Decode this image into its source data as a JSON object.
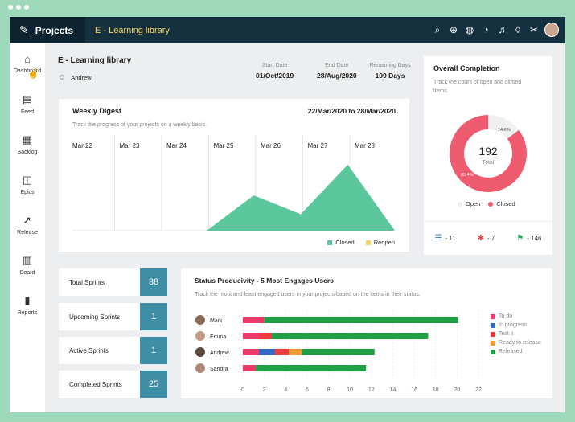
{
  "app": {
    "name": "Projects",
    "project": "E - Learning library"
  },
  "top_icons": [
    "search-icon",
    "plus-circle-icon",
    "globe-icon",
    "alarm-icon",
    "bell-icon",
    "drop-icon",
    "tools-icon"
  ],
  "sidebar": {
    "items": [
      {
        "label": "Dashboard",
        "icon": "⌂"
      },
      {
        "label": "Feed",
        "icon": "▤"
      },
      {
        "label": "Backlog",
        "icon": "▦"
      },
      {
        "label": "Epics",
        "icon": "◫"
      },
      {
        "label": "Release",
        "icon": "➚"
      },
      {
        "label": "Board",
        "icon": "▥"
      },
      {
        "label": "Reports",
        "icon": "▮"
      }
    ]
  },
  "header": {
    "title": "E - Learning library",
    "owner": "Andrew",
    "start_label": "Start Date",
    "start_value": "01/Oct/2019",
    "end_label": "End Date",
    "end_value": "28/Aug/2020",
    "remaining_label": "Remaining Days",
    "remaining_value": "109 Days"
  },
  "weekly": {
    "title": "Weekly Digest",
    "range": "22/Mar/2020 to 28/Mar/2020",
    "subtitle": "Track the progress of your projects on a weekly basis.",
    "legend_closed": "Closed",
    "legend_reopen": "Reopen"
  },
  "completion": {
    "title": "Overall Completion",
    "subtitle": "Track the count of open and closed items.",
    "total": "192",
    "total_label": "Total",
    "open_label": "Open",
    "closed_label": "Closed",
    "closed_pct_label": "85.4%",
    "open_pct_label": "14.6%",
    "stat1": "- 11",
    "stat2": "- 7",
    "stat3": "- 146"
  },
  "sprints": [
    {
      "label": "Total Sprints",
      "value": "38"
    },
    {
      "label": "Upcoming Sprints",
      "value": "1"
    },
    {
      "label": "Active Sprints",
      "value": "1"
    },
    {
      "label": "Completed Sprints",
      "value": "25"
    }
  ],
  "status": {
    "title": "Status Producivity - 5 Most Engages Users",
    "subtitle": "Track the most and least engaged users in your projects based on the items in their status.",
    "legend": [
      {
        "label": "To do",
        "color": "#ee3a6a"
      },
      {
        "label": "In progress",
        "color": "#3368c6"
      },
      {
        "label": "Test it",
        "color": "#ef3b3b"
      },
      {
        "label": "Ready to release",
        "color": "#f59a32"
      },
      {
        "label": "Released",
        "color": "#1fa045"
      }
    ]
  },
  "colors": {
    "accent": "#3e8ea6",
    "topbar": "#15303f",
    "closed": "#5cc79c",
    "reopen": "#f4d45a",
    "donut_closed": "#ee5a6e",
    "donut_open": "#f0f0f0"
  },
  "chart_data": [
    {
      "type": "area",
      "categories": [
        "Mar 22",
        "Mar 23",
        "Mar 24",
        "Mar 25",
        "Mar 26",
        "Mar 27",
        "Mar 28"
      ],
      "series": [
        {
          "name": "Closed",
          "values": [
            0,
            0,
            0,
            1.5,
            0.7,
            2.8,
            0
          ]
        },
        {
          "name": "Reopen",
          "values": [
            0,
            0,
            0,
            0,
            0,
            0,
            0
          ]
        }
      ],
      "title": "Weekly Digest"
    },
    {
      "type": "pie",
      "categories": [
        "Open",
        "Closed"
      ],
      "values": [
        14.6,
        85.4
      ],
      "title": "Overall Completion"
    },
    {
      "type": "bar",
      "orientation": "horizontal",
      "stacked": true,
      "categories": [
        "Mark",
        "Emma",
        "Andrew",
        "Sandra"
      ],
      "series": [
        {
          "name": "To do",
          "values": [
            2,
            1.5,
            1.5,
            1.2
          ]
        },
        {
          "name": "In progress",
          "values": [
            0,
            0,
            1.5,
            0
          ]
        },
        {
          "name": "Test it",
          "values": [
            0,
            1.2,
            1.3,
            0
          ]
        },
        {
          "name": "Ready to release",
          "values": [
            0,
            0,
            1.2,
            0
          ]
        },
        {
          "name": "Released",
          "values": [
            18.1,
            14.6,
            6.8,
            10.3
          ]
        }
      ],
      "xticks": [
        0,
        2,
        4,
        6,
        8,
        10,
        12,
        14,
        16,
        18,
        20,
        22
      ],
      "xlim": [
        0,
        22
      ],
      "title": "Status Producivity - 5 Most Engages Users"
    }
  ]
}
